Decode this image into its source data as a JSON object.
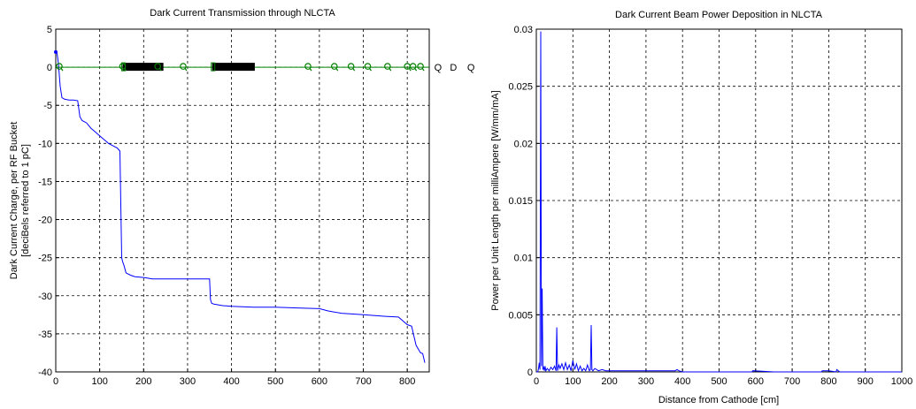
{
  "chart_data": [
    {
      "type": "line",
      "title": "Dark Current Transmission through NLCTA",
      "xlabel": "",
      "ylabel": "Dark Current Charge, per RF Bucket",
      "ylabel2": "[deciBels referred to 1 pC]",
      "xlim": [
        0,
        850
      ],
      "ylim": [
        -40,
        5
      ],
      "xticks": [
        0,
        100,
        200,
        300,
        400,
        500,
        600,
        700,
        800
      ],
      "yticks": [
        -40,
        -35,
        -30,
        -25,
        -20,
        -15,
        -10,
        -5,
        0,
        5
      ],
      "grid": true,
      "series": [
        {
          "color": "#0000ff",
          "x": [
            0,
            3,
            6,
            8,
            10,
            14,
            20,
            30,
            40,
            50,
            55,
            60,
            70,
            80,
            90,
            100,
            110,
            120,
            130,
            140,
            146,
            150,
            152,
            155,
            160,
            170,
            180,
            200,
            220,
            250,
            300,
            350,
            352,
            355,
            360,
            380,
            400,
            450,
            500,
            550,
            600,
            620,
            650,
            700,
            750,
            780,
            800,
            810,
            820,
            830,
            835,
            840
          ],
          "y": [
            2,
            1.8,
            0.5,
            -1,
            -2.5,
            -4,
            -4.2,
            -4.3,
            -4.3,
            -4.4,
            -6.5,
            -7,
            -7.3,
            -8,
            -8.5,
            -9,
            -9.5,
            -10,
            -10.3,
            -10.6,
            -11,
            -25,
            -25.5,
            -26,
            -27,
            -27.3,
            -27.5,
            -27.6,
            -27.8,
            -27.8,
            -27.8,
            -27.8,
            -30.5,
            -31,
            -31.1,
            -31.3,
            -31.4,
            -31.5,
            -31.5,
            -31.6,
            -31.7,
            -32,
            -32.3,
            -32.5,
            -32.7,
            -32.8,
            -33.8,
            -34,
            -36.5,
            -37.5,
            -37.6,
            -38.8
          ]
        },
        {
          "color": "#008000",
          "x": [
            0,
            850
          ],
          "y": [
            0,
            0
          ]
        }
      ],
      "markers": {
        "y": 0,
        "open_x": [
          8,
          152,
          232,
          290,
          574,
          634,
          672,
          710,
          755,
          800,
          813,
          830
        ],
        "dense_bands": [
          [
            152,
            245
          ],
          [
            356,
            453
          ]
        ],
        "labels": [
          {
            "text": "Q",
            "x": 870
          },
          {
            "text": "D",
            "x": 905
          },
          {
            "text": "Q",
            "x": 945
          }
        ]
      }
    },
    {
      "type": "line",
      "title": "Dark Current Beam Power Deposition in NLCTA",
      "xlabel": "Distance from Cathode [cm]",
      "ylabel": "Power per Unit Length per milliAmpere [W/mm/mA]",
      "xlim": [
        0,
        1000
      ],
      "ylim": [
        0,
        0.03
      ],
      "xticks": [
        0,
        100,
        200,
        300,
        400,
        500,
        600,
        700,
        800,
        900,
        1000
      ],
      "yticks": [
        0,
        0.005,
        0.01,
        0.015,
        0.02,
        0.025,
        0.03
      ],
      "grid": true,
      "series": [
        {
          "color": "#0000ff",
          "x": [
            0,
            4,
            6,
            8,
            10,
            12,
            14,
            16,
            18,
            20,
            22,
            24,
            26,
            30,
            35,
            40,
            45,
            50,
            54,
            56,
            58,
            60,
            62,
            65,
            70,
            75,
            80,
            85,
            90,
            95,
            100,
            105,
            110,
            115,
            120,
            125,
            130,
            135,
            140,
            145,
            148,
            150,
            152,
            155,
            160,
            170,
            180,
            190,
            200,
            220,
            300,
            350,
            380,
            385,
            390,
            400,
            450,
            550,
            590,
            592,
            650,
            700,
            780,
            782,
            800,
            820,
            822,
            830,
            900,
            1000
          ],
          "y": [
            0,
            0,
            0.0003,
            0.0008,
            0.0002,
            0.0298,
            0.0005,
            0.0073,
            0.0002,
            0.0004,
            0.0001,
            0.0005,
            0.0001,
            0.0003,
            0.0001,
            0.0004,
            0.0002,
            0.0005,
            0.0001,
            0.0039,
            0.0001,
            0.0004,
            0.0006,
            0.0003,
            0.0007,
            0.0002,
            0.0008,
            0.0002,
            0.0006,
            0.0001,
            0.001,
            0.0002,
            0.0007,
            0.0001,
            0.0005,
            0.0001,
            0.0003,
            0.0001,
            0.0006,
            0.0001,
            0.0002,
            0.0041,
            0.0002,
            0.0001,
            0.0003,
            0.0001,
            0.0002,
            0.0001,
            0.0001,
            0.0001,
            0.0001,
            0.0001,
            0.0001,
            0.0002,
            0.0001,
            0,
            0,
            0,
            0,
            0.0001,
            0,
            0,
            0,
            0.0001,
            0.0001,
            0,
            0.0002,
            0,
            0,
            0
          ]
        }
      ]
    }
  ]
}
